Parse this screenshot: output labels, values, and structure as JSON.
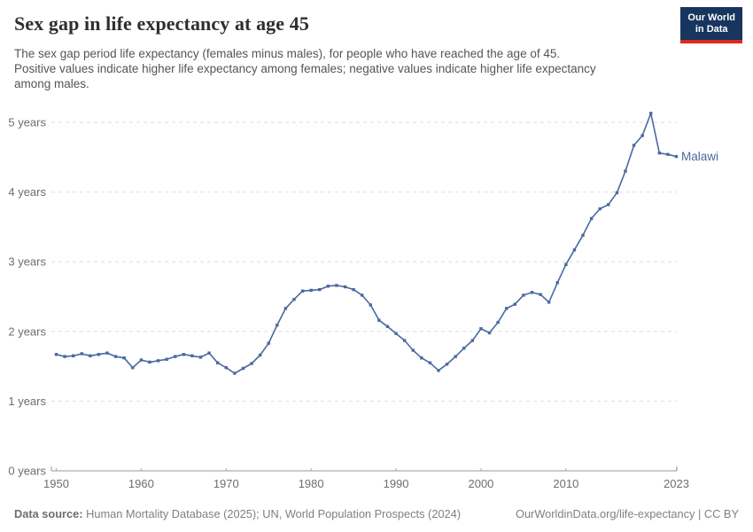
{
  "header": {
    "title": "Sex gap in life expectancy at age 45",
    "subtitle_lines": [
      "The sex gap period life expectancy (females minus males), for people who have reached the age of 45.",
      "Positive values indicate higher life expectancy among females; negative values indicate higher life expectancy",
      "among males."
    ]
  },
  "logo": {
    "line1": "Our World",
    "line2": "in Data",
    "bg_color": "#17355e",
    "accent_color": "#dc2a20"
  },
  "chart_data": {
    "type": "line",
    "title": "Sex gap in life expectancy at age 45",
    "unit": "years",
    "entity_label": "Malawi",
    "line_color": "#4a69a0",
    "grid": "horizontal-dashed",
    "legend_position": "end-of-line-label",
    "xlim": [
      1950,
      2023
    ],
    "ylim": [
      0,
      5.35
    ],
    "xticks": [
      1950,
      1960,
      1970,
      1980,
      1990,
      2000,
      2010,
      2023
    ],
    "yticks": [
      {
        "value": 0,
        "label": "0 years"
      },
      {
        "value": 1,
        "label": "1 years"
      },
      {
        "value": 2,
        "label": "2 years"
      },
      {
        "value": 3,
        "label": "3 years"
      },
      {
        "value": 4,
        "label": "4 years"
      },
      {
        "value": 5,
        "label": "5 years"
      }
    ],
    "x": [
      1950,
      1951,
      1952,
      1953,
      1954,
      1955,
      1956,
      1957,
      1958,
      1959,
      1960,
      1961,
      1962,
      1963,
      1964,
      1965,
      1966,
      1967,
      1968,
      1969,
      1970,
      1971,
      1972,
      1973,
      1974,
      1975,
      1976,
      1977,
      1978,
      1979,
      1980,
      1981,
      1982,
      1983,
      1984,
      1985,
      1986,
      1987,
      1988,
      1989,
      1990,
      1991,
      1992,
      1993,
      1994,
      1995,
      1996,
      1997,
      1998,
      1999,
      2000,
      2001,
      2002,
      2003,
      2004,
      2005,
      2006,
      2007,
      2008,
      2009,
      2010,
      2011,
      2012,
      2013,
      2014,
      2015,
      2016,
      2017,
      2018,
      2019,
      2020,
      2021,
      2022,
      2023
    ],
    "series": [
      {
        "name": "Malawi",
        "values": [
          1.67,
          1.64,
          1.65,
          1.68,
          1.65,
          1.67,
          1.69,
          1.64,
          1.62,
          1.48,
          1.59,
          1.56,
          1.58,
          1.6,
          1.64,
          1.67,
          1.65,
          1.63,
          1.69,
          1.55,
          1.48,
          1.4,
          1.47,
          1.54,
          1.66,
          1.83,
          2.09,
          2.33,
          2.46,
          2.58,
          2.59,
          2.6,
          2.65,
          2.66,
          2.64,
          2.6,
          2.52,
          2.38,
          2.16,
          2.07,
          1.97,
          1.87,
          1.73,
          1.62,
          1.55,
          1.44,
          1.53,
          1.64,
          1.76,
          1.87,
          2.04,
          1.98,
          2.13,
          2.33,
          2.39,
          2.52,
          2.56,
          2.53,
          2.42,
          2.7,
          2.96,
          3.17,
          3.38,
          3.62,
          3.76,
          3.82,
          3.99,
          4.3,
          4.67,
          4.81,
          5.13,
          4.56,
          4.54,
          4.51
        ]
      }
    ]
  },
  "footer": {
    "source_label": "Data source:",
    "source_text": " Human Mortality Database (2025); UN, World Population Prospects (2024)",
    "right_text": "OurWorldinData.org/life-expectancy | CC BY"
  }
}
